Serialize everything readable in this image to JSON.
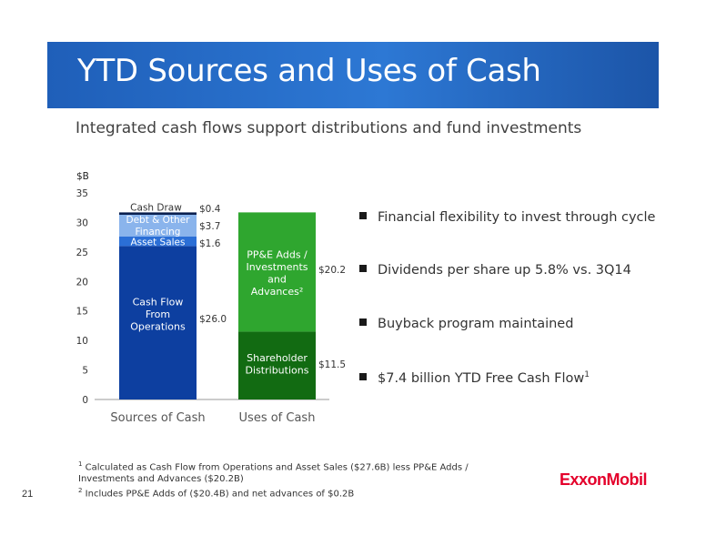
{
  "header": {
    "title": "YTD Sources and Uses of Cash"
  },
  "subtitle": "Integrated cash flows support distributions and fund investments",
  "bullets": [
    {
      "text": "Financial flexibility to invest through cycle",
      "sup": ""
    },
    {
      "text": "Dividends per share up 5.8% vs. 3Q14",
      "sup": ""
    },
    {
      "text": "Buyback program maintained",
      "sup": ""
    },
    {
      "text": "$7.4 billion YTD Free Cash Flow",
      "sup": "1"
    }
  ],
  "footnotes": [
    {
      "num": "1",
      "text": "Calculated as Cash Flow from Operations and Asset Sales ($27.6B) less PP&E Adds / Investments and Advances ($20.2B)"
    },
    {
      "num": "2",
      "text": "Includes PP&E Adds of ($20.4B) and net advances of $0.2B"
    }
  ],
  "page_number": "21",
  "logo_text": "ExxonMobil",
  "colors": {
    "banner": "#2566c2",
    "cfo": "#0d3fa0",
    "asset_sales": "#2b6fd6",
    "debt_financing": "#8ab4ec",
    "cash_draw": "#0a1f4f",
    "ppe": "#2fa62f",
    "shareholder": "#126b12",
    "logo": "#e4002b"
  },
  "chart_data": {
    "type": "bar",
    "stacked": true,
    "unit_label": "$B",
    "ylim": [
      0,
      35
    ],
    "yticks": [
      0,
      5,
      10,
      15,
      20,
      25,
      30,
      35
    ],
    "grid": false,
    "categories": [
      "Sources of Cash",
      "Uses of Cash"
    ],
    "stacks": [
      {
        "category": "Sources of Cash",
        "segments": [
          {
            "name": "Cash Flow\nFrom\nOperations",
            "value": 26.0,
            "value_label": "$26.0",
            "color": "#0d3fa0"
          },
          {
            "name": "Asset Sales",
            "value": 1.6,
            "value_label": "$1.6",
            "color": "#2b6fd6"
          },
          {
            "name": "Debt & Other\nFinancing",
            "value": 3.7,
            "value_label": "$3.7",
            "color": "#8ab4ec"
          },
          {
            "name": "Cash Draw",
            "value": 0.4,
            "value_label": "$0.4",
            "color": "#0a1f4f"
          }
        ]
      },
      {
        "category": "Uses of Cash",
        "segments": [
          {
            "name": "Shareholder\nDistributions",
            "value": 11.5,
            "value_label": "$11.5",
            "color": "#126b12"
          },
          {
            "name": "PP&E Adds /\nInvestments\nand\nAdvances²",
            "value": 20.2,
            "value_label": "$20.2",
            "color": "#2fa62f"
          }
        ]
      }
    ]
  }
}
